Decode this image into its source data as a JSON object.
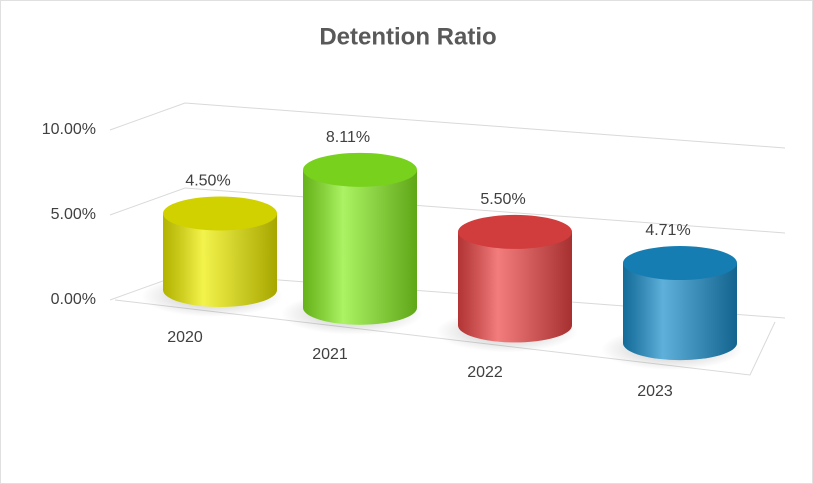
{
  "chart_data": {
    "type": "bar3d",
    "title": "Detention Ratio",
    "categories": [
      "2020",
      "2021",
      "2022",
      "2023"
    ],
    "values": [
      4.5,
      8.11,
      5.5,
      4.71
    ],
    "value_labels": [
      "4.50%",
      "8.11%",
      "5.50%",
      "4.71%"
    ],
    "colors": [
      "#eeee00",
      "#88ee22",
      "#ee4545",
      "#1a8fcb"
    ],
    "ylim": [
      0,
      10
    ],
    "yticks": [
      {
        "value": 0,
        "label": "0.00%"
      },
      {
        "value": 5,
        "label": "5.00%"
      },
      {
        "value": 10,
        "label": "10.00%"
      }
    ],
    "grid": true
  }
}
